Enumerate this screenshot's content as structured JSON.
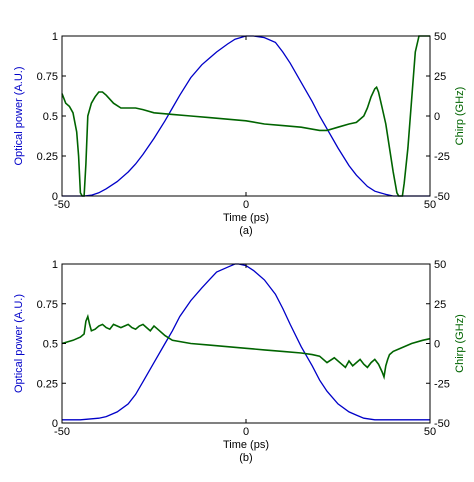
{
  "colors": {
    "power": "#0000c8",
    "chirp": "#006400",
    "axes": "#000000"
  },
  "chart_data": [
    {
      "type": "line",
      "panel_label": "(a)",
      "xlabel": "Time (ps)",
      "ylabel_left": "Optical power (A.U.)",
      "ylabel_right": "Chirp (GHz)",
      "xlim": [
        -50,
        50
      ],
      "ylim_left": [
        0,
        1
      ],
      "ylim_right": [
        -50,
        50
      ],
      "x_ticks": [
        "-50",
        "0",
        "50"
      ],
      "y_ticks_left": [
        "0",
        "0.25",
        "0.5",
        "0.75",
        "1"
      ],
      "y_ticks_right": [
        "-50",
        "-25",
        "0",
        "25",
        "50"
      ],
      "grid": false,
      "series": [
        {
          "axis": "left",
          "x": [
            -50,
            -47,
            -44,
            -42,
            -40,
            -38,
            -35,
            -32,
            -30,
            -28,
            -25,
            -22,
            -20,
            -18,
            -15,
            -12,
            -10,
            -8,
            -5,
            -3,
            0,
            2,
            5,
            8,
            10,
            12,
            15,
            18,
            20,
            22,
            25,
            28,
            30,
            33,
            35,
            38,
            40,
            43,
            45,
            50
          ],
          "y": [
            0,
            0,
            0,
            0.005,
            0.02,
            0.045,
            0.09,
            0.15,
            0.2,
            0.26,
            0.36,
            0.47,
            0.55,
            0.63,
            0.74,
            0.82,
            0.86,
            0.9,
            0.95,
            0.98,
            1.0,
            1.0,
            0.99,
            0.96,
            0.9,
            0.83,
            0.71,
            0.59,
            0.5,
            0.42,
            0.3,
            0.19,
            0.13,
            0.06,
            0.03,
            0.01,
            0,
            0,
            0,
            0
          ]
        },
        {
          "axis": "right",
          "x": [
            -50,
            -49,
            -48,
            -47,
            -46,
            -45.5,
            -45,
            -44.5,
            -44,
            -43.5,
            -43,
            -42,
            -41,
            -40,
            -39,
            -38,
            -36,
            -34,
            -32,
            -30,
            -28,
            -25,
            -20,
            -15,
            -10,
            -5,
            0,
            5,
            10,
            15,
            20,
            22,
            25,
            28,
            30,
            32,
            33,
            34,
            35,
            35.5,
            36,
            37,
            38,
            39,
            40,
            41,
            41.5,
            42,
            42.5,
            43,
            44,
            45,
            46,
            47,
            48,
            49,
            50
          ],
          "y": [
            14,
            8,
            6,
            2,
            -10,
            -25,
            -48,
            -50,
            -50,
            -30,
            0,
            8,
            12,
            15,
            15,
            13,
            8,
            5,
            5,
            5,
            4,
            2,
            1,
            0,
            -1,
            -2,
            -3,
            -5,
            -6,
            -7,
            -9,
            -9,
            -7,
            -5,
            -4,
            0,
            5,
            12,
            17,
            18,
            15,
            5,
            -5,
            -20,
            -35,
            -48,
            -50,
            -50,
            -50,
            -42,
            -20,
            10,
            40,
            50,
            50,
            50,
            50
          ]
        }
      ]
    },
    {
      "type": "line",
      "panel_label": "(b)",
      "xlabel": "Time (ps)",
      "ylabel_left": "Optical power (A.U.)",
      "ylabel_right": "Chirp (GHz)",
      "xlim": [
        -50,
        50
      ],
      "ylim_left": [
        0,
        1
      ],
      "ylim_right": [
        -50,
        50
      ],
      "x_ticks": [
        "-50",
        "0",
        "50"
      ],
      "y_ticks_left": [
        "0",
        "0.25",
        "0.5",
        "0.75",
        "1"
      ],
      "y_ticks_right": [
        "-50",
        "-25",
        "0",
        "25",
        "50"
      ],
      "grid": false,
      "series": [
        {
          "axis": "left",
          "x": [
            -50,
            -45,
            -40,
            -38,
            -35,
            -32,
            -30,
            -28,
            -25,
            -22,
            -20,
            -18,
            -15,
            -12,
            -10,
            -8,
            -5,
            -3,
            -2,
            0,
            2,
            5,
            8,
            10,
            12,
            15,
            18,
            20,
            22,
            25,
            28,
            30,
            32,
            35,
            38,
            40,
            45,
            50
          ],
          "y": [
            0.02,
            0.02,
            0.03,
            0.04,
            0.07,
            0.12,
            0.18,
            0.26,
            0.38,
            0.5,
            0.58,
            0.67,
            0.77,
            0.85,
            0.9,
            0.95,
            0.98,
            1.0,
            1.0,
            0.99,
            0.96,
            0.9,
            0.81,
            0.72,
            0.62,
            0.48,
            0.36,
            0.27,
            0.2,
            0.12,
            0.07,
            0.05,
            0.03,
            0.02,
            0.02,
            0.02,
            0.02,
            0.02
          ]
        },
        {
          "axis": "right",
          "x": [
            -50,
            -47,
            -45,
            -44,
            -43.5,
            -43,
            -42.5,
            -42,
            -41,
            -40,
            -39,
            -38,
            -37,
            -36,
            -35,
            -34,
            -33,
            -32,
            -31,
            -30,
            -29,
            -28,
            -27,
            -26,
            -25,
            -24,
            -22,
            -20,
            -15,
            -10,
            -5,
            0,
            5,
            10,
            15,
            18,
            20,
            22,
            24,
            26,
            27,
            28,
            29,
            30,
            31,
            32,
            33,
            34,
            35,
            36,
            37,
            37.5,
            38,
            38.5,
            39,
            40,
            42,
            45,
            48,
            50
          ],
          "y": [
            0,
            2,
            4,
            6,
            14,
            17,
            12,
            8,
            9,
            11,
            12,
            10,
            9,
            12,
            11,
            10,
            11,
            12,
            10,
            9,
            11,
            12,
            10,
            8,
            11,
            9,
            5,
            2,
            0,
            -1,
            -2,
            -3,
            -4,
            -5,
            -6,
            -7,
            -8,
            -12,
            -9,
            -13,
            -15,
            -11,
            -14,
            -12,
            -10,
            -13,
            -15,
            -12,
            -10,
            -13,
            -18,
            -21,
            -14,
            -10,
            -7,
            -5,
            -3,
            0,
            2,
            3
          ]
        }
      ]
    }
  ]
}
